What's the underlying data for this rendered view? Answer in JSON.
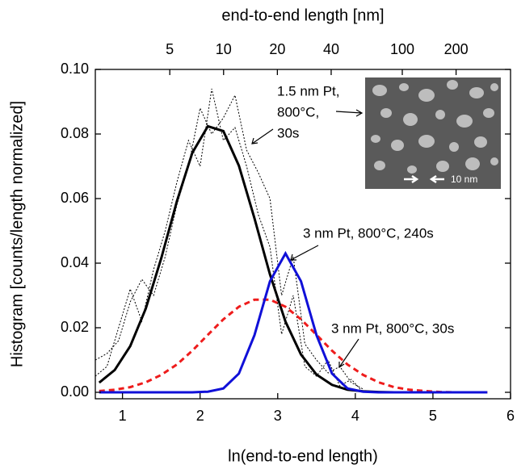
{
  "chart_data": {
    "type": "line",
    "xlabel": "ln(end-to-end length)",
    "x2label": "end-to-end length [nm]",
    "ylabel": "Histogram [counts/length normalized]",
    "xlim": [
      0.65,
      6
    ],
    "xticks": [
      1,
      2,
      3,
      4,
      5,
      6
    ],
    "x2scale": "ln",
    "x2ticks": [
      5,
      10,
      20,
      40,
      100,
      200
    ],
    "ylim": [
      -0.002,
      0.1
    ],
    "yticks": [
      {
        "value": 0,
        "label": "0.00"
      },
      {
        "value": 0.02,
        "label": "0.02"
      },
      {
        "value": 0.04,
        "label": "0.04"
      },
      {
        "value": 0.06,
        "label": "0.06"
      },
      {
        "value": 0.08,
        "label": "0.08"
      },
      {
        "value": 0.1,
        "label": "0.10"
      }
    ],
    "annotations": [
      {
        "lines": [
          "1.5 nm Pt,",
          "800°C,",
          "30s"
        ]
      },
      {
        "lines": [
          "3 nm Pt, 800°C, 240s"
        ]
      },
      {
        "lines": [
          "3 nm Pt, 800°C, 30s"
        ]
      }
    ],
    "inset_label": "10 nm",
    "series": [
      {
        "color": "#000000",
        "style": "dotted",
        "width": 1,
        "x": [
          0.65,
          0.8,
          0.95,
          1.1,
          1.25,
          1.4,
          1.55,
          1.7,
          1.85,
          2.0,
          2.15,
          2.3,
          2.45,
          2.6,
          2.75,
          2.9,
          3.05,
          3.2,
          3.35,
          3.5,
          3.65,
          3.8,
          3.95,
          4.1
        ],
        "values": [
          0.01,
          0.012,
          0.016,
          0.028,
          0.035,
          0.03,
          0.042,
          0.058,
          0.07,
          0.088,
          0.08,
          0.085,
          0.092,
          0.075,
          0.068,
          0.06,
          0.03,
          0.042,
          0.015,
          0.01,
          0.006,
          0.008,
          0.003,
          0.001
        ]
      },
      {
        "color": "#000000",
        "style": "dotted",
        "width": 1,
        "x": [
          0.65,
          0.8,
          0.95,
          1.1,
          1.25,
          1.4,
          1.55,
          1.7,
          1.85,
          2.0,
          2.15,
          2.3,
          2.45,
          2.6,
          2.75,
          2.9,
          3.05,
          3.2,
          3.35,
          3.5,
          3.65,
          3.8,
          3.95,
          4.1
        ],
        "values": [
          0.005,
          0.008,
          0.02,
          0.032,
          0.022,
          0.038,
          0.05,
          0.065,
          0.078,
          0.07,
          0.094,
          0.078,
          0.082,
          0.07,
          0.055,
          0.045,
          0.018,
          0.03,
          0.008,
          0.005,
          0.01,
          0.002,
          0.004,
          0.0
        ]
      },
      {
        "color": "#000000",
        "style": "solid",
        "width": 3,
        "x": [
          0.7,
          0.9,
          1.1,
          1.3,
          1.5,
          1.7,
          1.9,
          2.1,
          2.3,
          2.5,
          2.7,
          2.9,
          3.1,
          3.3,
          3.5,
          3.7,
          3.9,
          4.1,
          4.3,
          4.5,
          4.7,
          4.9,
          5.1,
          5.3,
          5.5,
          5.7
        ],
        "values": [
          0.003,
          0.0069,
          0.0143,
          0.0259,
          0.0416,
          0.0591,
          0.0742,
          0.0824,
          0.0809,
          0.0702,
          0.0539,
          0.0365,
          0.0219,
          0.0117,
          0.0055,
          0.0023,
          0.0008,
          0.0003,
          0.0001,
          0,
          0,
          0,
          0,
          0,
          0,
          0
        ]
      },
      {
        "color": "#ee1c1c",
        "style": "dashed",
        "width": 3,
        "x": [
          0.7,
          0.9,
          1.1,
          1.3,
          1.5,
          1.7,
          1.9,
          2.1,
          2.3,
          2.5,
          2.7,
          2.9,
          3.1,
          3.3,
          3.5,
          3.7,
          3.9,
          4.1,
          4.3,
          4.5,
          4.7,
          4.9,
          5.1,
          5.3,
          5.5,
          5.7
        ],
        "values": [
          0.0004,
          0.0008,
          0.0016,
          0.0031,
          0.0054,
          0.0086,
          0.0129,
          0.0178,
          0.0226,
          0.0265,
          0.0287,
          0.0287,
          0.0265,
          0.0226,
          0.0178,
          0.0129,
          0.0086,
          0.0054,
          0.0031,
          0.0016,
          0.0008,
          0.0004,
          0.0001,
          0,
          0,
          0
        ]
      },
      {
        "color": "#1010d8",
        "style": "solid",
        "width": 3,
        "x": [
          0.7,
          0.9,
          1.1,
          1.3,
          1.5,
          1.7,
          1.9,
          2.1,
          2.3,
          2.5,
          2.7,
          2.9,
          3.1,
          3.3,
          3.5,
          3.7,
          3.9,
          4.1,
          4.3,
          4.5,
          4.7,
          4.9,
          5.1,
          5.3,
          5.5,
          5.7
        ],
        "values": [
          0,
          0,
          0,
          0,
          0,
          0,
          0,
          0.0002,
          0.0012,
          0.0058,
          0.0177,
          0.0344,
          0.043,
          0.0344,
          0.0177,
          0.0058,
          0.0012,
          0.0002,
          0,
          0,
          0,
          0,
          0,
          0,
          0,
          0
        ]
      }
    ]
  }
}
